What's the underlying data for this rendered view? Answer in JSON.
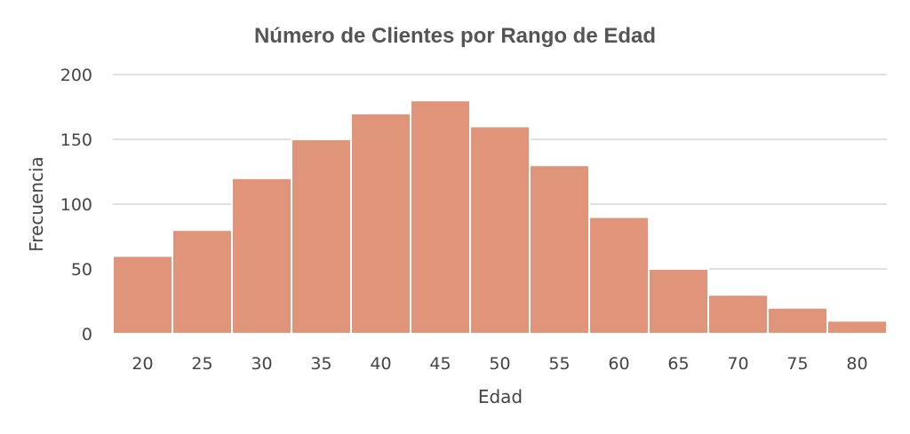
{
  "chart_data": {
    "type": "bar",
    "title": "Número de Clientes por Rango de Edad",
    "xlabel": "Edad",
    "ylabel": "Frecuencia",
    "categories": [
      "20",
      "25",
      "30",
      "35",
      "40",
      "45",
      "50",
      "55",
      "60",
      "65",
      "70",
      "75",
      "80"
    ],
    "values": [
      60,
      80,
      120,
      150,
      170,
      180,
      160,
      130,
      90,
      50,
      30,
      20,
      10
    ],
    "ylim": [
      0,
      200
    ],
    "yticks": [
      "0",
      "50",
      "100",
      "150",
      "200"
    ],
    "grid": true,
    "legend": "none",
    "bar_color": "#e0957a"
  }
}
